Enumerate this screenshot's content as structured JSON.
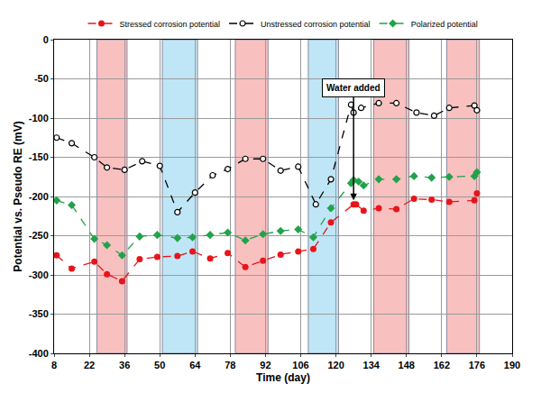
{
  "chart_data": {
    "type": "line",
    "x_label": "Time (day)",
    "y_label": "Potential vs. Pseudo RE (mV)",
    "xlim": [
      8,
      190
    ],
    "xticks": [
      8,
      22,
      36,
      50,
      64,
      78,
      92,
      106,
      120,
      134,
      148,
      162,
      176,
      190
    ],
    "ylim": [
      -400,
      0
    ],
    "yticks": [
      -400,
      -350,
      -300,
      -250,
      -200,
      -150,
      -100,
      -50,
      0
    ],
    "grid": true,
    "legend": "top",
    "bands": [
      {
        "start": 25,
        "end": 37,
        "color": "#f9c0c0"
      },
      {
        "start": 51,
        "end": 65,
        "color": "#bfe6f6"
      },
      {
        "start": 80,
        "end": 93,
        "color": "#f9c0c0"
      },
      {
        "start": 109,
        "end": 121,
        "color": "#bfe6f6"
      },
      {
        "start": 135,
        "end": 149,
        "color": "#f9c0c0"
      },
      {
        "start": 164,
        "end": 177,
        "color": "#f9c0c0"
      }
    ],
    "annotation": {
      "text": "Water added",
      "x": 127,
      "y": -205,
      "label_y": -62
    },
    "series": [
      {
        "name": "Stressed corrosion potential",
        "color": "#e8141b",
        "marker": "circle",
        "line_style": "dash",
        "x": [
          9,
          15,
          24,
          29,
          35,
          42,
          49,
          57,
          63,
          70,
          77,
          84,
          91,
          98,
          105,
          111,
          118,
          127,
          128,
          131,
          137,
          144,
          151,
          158,
          165,
          175,
          176
        ],
        "values": [
          -275,
          -292,
          -283,
          -299,
          -308,
          -280,
          -277,
          -276,
          -270,
          -279,
          -272,
          -290,
          -282,
          -274,
          -270,
          -267,
          -233,
          -210,
          -210,
          -218,
          -215,
          -216,
          -203,
          -204,
          -207,
          -205,
          -196
        ]
      },
      {
        "name": "Unstressed corrosion potential",
        "color": "#000000",
        "marker": "circle-open",
        "line_style": "dash",
        "x": [
          9,
          15,
          24,
          29,
          36,
          43,
          50,
          57,
          64,
          71,
          77,
          84,
          91,
          98,
          105,
          112,
          118,
          126,
          127,
          130,
          137,
          144,
          152,
          159,
          165,
          175,
          176
        ],
        "values": [
          -125,
          -132,
          -150,
          -163,
          -166,
          -155,
          -161,
          -220,
          -195,
          -173,
          -165,
          -152,
          -152,
          -167,
          -162,
          -210,
          -178,
          -83,
          -93,
          -87,
          -81,
          -81,
          -93,
          -97,
          -87,
          -84,
          -90
        ]
      },
      {
        "name": "Polarized potential",
        "color": "#22a24a",
        "marker": "diamond",
        "line_style": "dash",
        "x": [
          9,
          15,
          24,
          29,
          35,
          42,
          49,
          57,
          63,
          70,
          77,
          84,
          91,
          98,
          105,
          111,
          118,
          126,
          127,
          129,
          131,
          137,
          144,
          151,
          158,
          165,
          175,
          176
        ],
        "values": [
          -205,
          -211,
          -254,
          -262,
          -275,
          -251,
          -249,
          -253,
          -252,
          -249,
          -246,
          -256,
          -248,
          -244,
          -242,
          -252,
          -215,
          -183,
          -179,
          -181,
          -186,
          -178,
          -178,
          -174,
          -176,
          -175,
          -174,
          -169
        ]
      }
    ]
  }
}
